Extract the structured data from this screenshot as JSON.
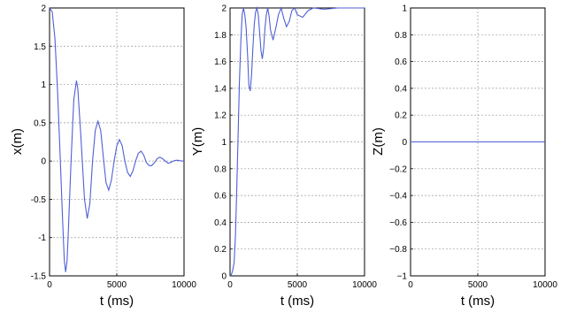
{
  "chart_data": [
    {
      "type": "line",
      "xlabel": "t (ms)",
      "ylabel": "x(m)",
      "xlim": [
        0,
        10000
      ],
      "ylim": [
        -1.5,
        2
      ],
      "xticks": [
        0,
        5000,
        10000
      ],
      "yticks": [
        -1.5,
        -1,
        -0.5,
        0,
        0.5,
        1,
        1.5,
        2
      ],
      "ytick_labels": [
        "-1.5",
        "-1",
        "-0.5",
        "0",
        "0.5",
        "1",
        "1.5",
        "2"
      ],
      "grid": true,
      "line_color": "#4f5fd6",
      "series": [
        {
          "x": [
            0,
            200,
            400,
            600,
            800,
            1000,
            1100,
            1200,
            1300,
            1400,
            1600,
            1800,
            2000,
            2100,
            2300,
            2600,
            2800,
            3000,
            3200,
            3400,
            3600,
            3800,
            4000,
            4200,
            4400,
            4600,
            4800,
            5000,
            5200,
            5400,
            5600,
            5800,
            6000,
            6200,
            6400,
            6600,
            6800,
            7000,
            7200,
            7400,
            7600,
            7800,
            8000,
            8200,
            8400,
            8600,
            8800,
            9000,
            9200,
            9400,
            9600,
            9800,
            10000
          ],
          "y": [
            2.0,
            1.95,
            1.6,
            0.9,
            0.0,
            -0.9,
            -1.3,
            -1.45,
            -1.3,
            -0.9,
            0.0,
            0.8,
            1.05,
            0.95,
            0.4,
            -0.5,
            -0.75,
            -0.55,
            0.0,
            0.4,
            0.52,
            0.4,
            0.05,
            -0.28,
            -0.38,
            -0.25,
            0.0,
            0.2,
            0.28,
            0.2,
            0.0,
            -0.15,
            -0.2,
            -0.13,
            0.0,
            0.1,
            0.13,
            0.08,
            -0.02,
            -0.06,
            -0.06,
            -0.02,
            0.03,
            0.05,
            0.03,
            0.0,
            -0.03,
            -0.02,
            0.0,
            0.01,
            0.01,
            0.0,
            0.0
          ]
        }
      ]
    },
    {
      "type": "line",
      "xlabel": "t (ms)",
      "ylabel": "Y(m)",
      "xlim": [
        0,
        10000
      ],
      "ylim": [
        0,
        2
      ],
      "xticks": [
        0,
        5000,
        10000
      ],
      "yticks": [
        0,
        0.2,
        0.4,
        0.6,
        0.8,
        1,
        1.2,
        1.4,
        1.6,
        1.8,
        2
      ],
      "ytick_labels": [
        "0",
        "0.2",
        "0.4",
        "0.6",
        "0.8",
        "1",
        "1.2",
        "1.4",
        "1.6",
        "1.8",
        "2"
      ],
      "grid": true,
      "line_color": "#4f5fd6",
      "series": [
        {
          "x": [
            0,
            100,
            200,
            300,
            400,
            500,
            600,
            700,
            800,
            900,
            1000,
            1100,
            1200,
            1300,
            1400,
            1500,
            1600,
            1700,
            1800,
            1900,
            2000,
            2100,
            2200,
            2300,
            2400,
            2500,
            2600,
            2700,
            2800,
            2900,
            3000,
            3200,
            3400,
            3600,
            3800,
            4000,
            4200,
            4400,
            4600,
            4800,
            5000,
            5400,
            5800,
            6200,
            7000,
            8000,
            9000,
            10000
          ],
          "y": [
            0.0,
            0.01,
            0.04,
            0.1,
            0.3,
            0.65,
            1.05,
            1.45,
            1.75,
            1.95,
            2.0,
            1.95,
            1.85,
            1.65,
            1.42,
            1.38,
            1.5,
            1.7,
            1.88,
            1.97,
            2.0,
            1.95,
            1.82,
            1.68,
            1.62,
            1.7,
            1.85,
            1.95,
            2.0,
            1.94,
            1.84,
            1.76,
            1.85,
            1.95,
            2.0,
            1.92,
            1.86,
            1.9,
            1.98,
            2.0,
            1.95,
            1.93,
            1.98,
            2.0,
            1.99,
            2.0,
            2.0,
            2.0
          ]
        }
      ]
    },
    {
      "type": "line",
      "xlabel": "t (ms)",
      "ylabel": "Z(m)",
      "xlim": [
        0,
        10000
      ],
      "ylim": [
        -1,
        1
      ],
      "xticks": [
        0,
        5000,
        10000
      ],
      "yticks": [
        -1,
        -0.8,
        -0.6,
        -0.4,
        -0.2,
        0,
        0.2,
        0.4,
        0.6,
        0.8,
        1
      ],
      "ytick_labels": [
        "−1",
        "−0.8",
        "−0.6",
        "−0.4",
        "−0.2",
        "0",
        "0.2",
        "0.4",
        "0.6",
        "0.8",
        "1"
      ],
      "grid": true,
      "line_color": "#4f5fd6",
      "series": [
        {
          "x": [
            0,
            10000
          ],
          "y": [
            0,
            0
          ]
        }
      ]
    }
  ]
}
